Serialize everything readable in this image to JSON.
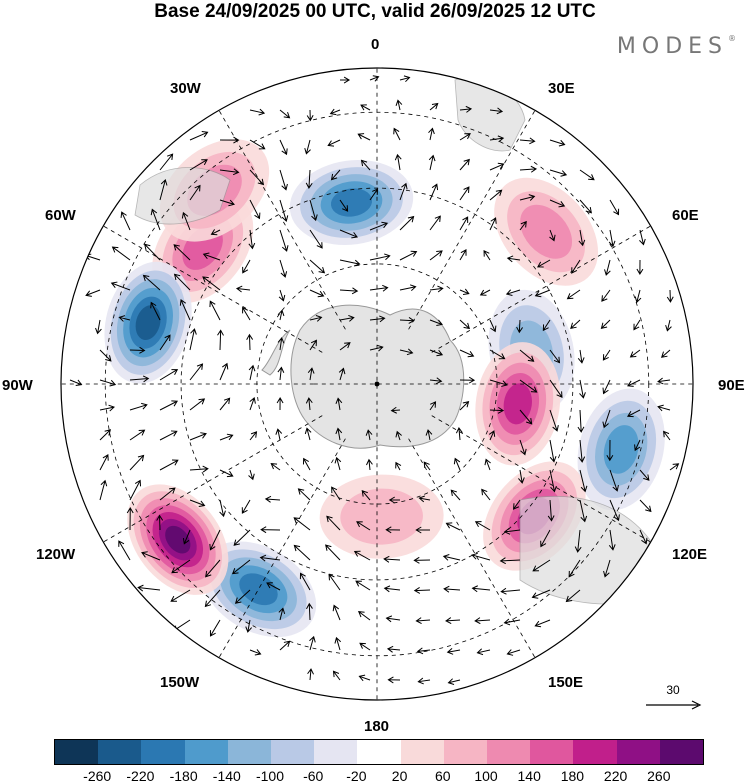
{
  "header": {
    "title": "Base 24/09/2025 00 UTC, valid 26/09/2025 12 UTC",
    "brand": "MODES",
    "brand_mark": "®"
  },
  "map": {
    "projection": "south-polar-stereographic",
    "longitude_labels": {
      "lon_0": "0",
      "lon_30e": "30E",
      "lon_60e": "60E",
      "lon_90e": "90E",
      "lon_120e": "120E",
      "lon_150e": "150E",
      "lon_180": "180",
      "lon_150w": "150W",
      "lon_120w": "120W",
      "lon_90w": "90W",
      "lon_60w": "60W",
      "lon_30w": "30W"
    },
    "anomaly_centers": [
      {
        "name": "low-south-atlantic",
        "lon_deg": -8,
        "lat_ring": 0.58,
        "value": -180
      },
      {
        "name": "high-drake-passage",
        "lon_deg": -52,
        "lat_ring": 0.7,
        "value": 140
      },
      {
        "name": "high-weddell-north",
        "lon_deg": -40,
        "lat_ring": 0.8,
        "value": 100
      },
      {
        "name": "high-south-indian",
        "lon_deg": 48,
        "lat_ring": 0.72,
        "value": 120
      },
      {
        "name": "low-kerguelen",
        "lon_deg": 78,
        "lat_ring": 0.5,
        "value": -120
      },
      {
        "name": "high-east-antarctic-coast",
        "lon_deg": 98,
        "lat_ring": 0.45,
        "value": 180
      },
      {
        "name": "low-south-indian-east",
        "lon_deg": 105,
        "lat_ring": 0.8,
        "value": -140
      },
      {
        "name": "high-south-australia",
        "lon_deg": 130,
        "lat_ring": 0.65,
        "value": 180
      },
      {
        "name": "low-amundsen",
        "lon_deg": -150,
        "lat_ring": 0.75,
        "value": -180
      },
      {
        "name": "high-southeast-pacific",
        "lon_deg": -128,
        "lat_ring": 0.8,
        "value": 260
      },
      {
        "name": "low-bellingshausen",
        "lon_deg": -75,
        "lat_ring": 0.75,
        "value": -220
      },
      {
        "name": "high-ross-sea",
        "lon_deg": 178,
        "lat_ring": 0.42,
        "value": 80
      }
    ]
  },
  "reference_vector": {
    "label": "30"
  },
  "colorbar": {
    "ticks": [
      "-260",
      "-220",
      "-180",
      "-140",
      "-100",
      "-60",
      "-20",
      "20",
      "60",
      "100",
      "140",
      "180",
      "220",
      "260"
    ],
    "colors": [
      "#0e3557",
      "#1a5a8c",
      "#2b78b2",
      "#4f9bcc",
      "#8bb6d9",
      "#b9c9e6",
      "#e5e5f2",
      "#ffffff",
      "#f9dada",
      "#f6b5c4",
      "#ee8ab0",
      "#e0579e",
      "#c11f8b",
      "#8f1085",
      "#5c0a6e"
    ]
  }
}
